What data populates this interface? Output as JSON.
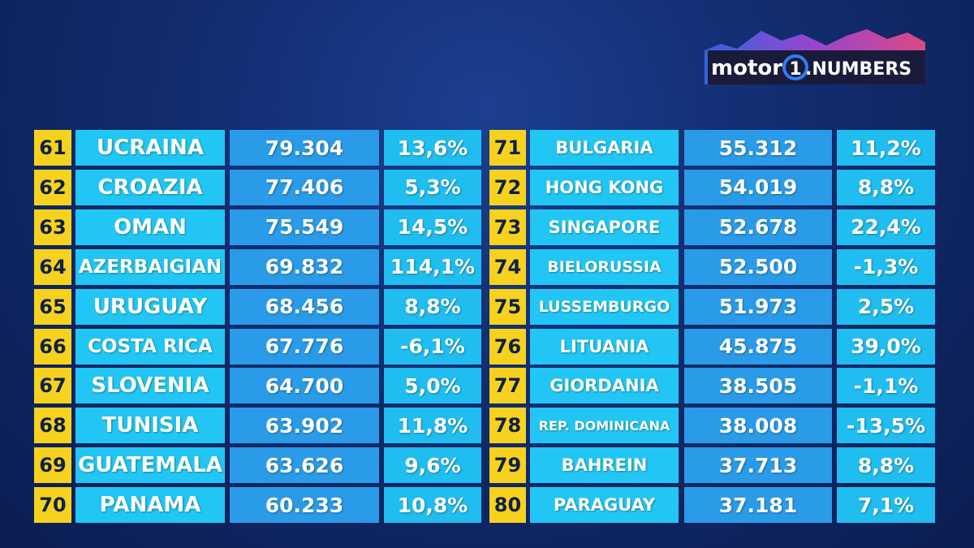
{
  "logo": {
    "brand": "motor",
    "mark": "1",
    "product": ".NUMBERS"
  },
  "tables": [
    {
      "rows": [
        [
          61,
          "UCRAINA",
          "79.304",
          "13,6%"
        ],
        [
          62,
          "CROAZIA",
          "77.406",
          "5,3%"
        ],
        [
          63,
          "OMAN",
          "75.549",
          "14,5%"
        ],
        [
          64,
          "AZERBAIGIAN",
          "69.832",
          "114,1%"
        ],
        [
          65,
          "URUGUAY",
          "68.456",
          "8,8%"
        ],
        [
          66,
          "COSTA RICA",
          "67.776",
          "-6,1%"
        ],
        [
          67,
          "SLOVENIA",
          "64.700",
          "5,0%"
        ],
        [
          68,
          "TUNISIA",
          "63.902",
          "11,8%"
        ],
        [
          69,
          "GUATEMALA",
          "63.626",
          "9,6%"
        ],
        [
          70,
          "PANAMA",
          "60.233",
          "10,8%"
        ]
      ]
    },
    {
      "rows": [
        [
          71,
          "BULGARIA",
          "55.312",
          "11,2%"
        ],
        [
          72,
          "HONG KONG",
          "54.019",
          "8,8%"
        ],
        [
          73,
          "SINGAPORE",
          "52.678",
          "22,4%"
        ],
        [
          74,
          "BIELORUSSIA",
          "52.500",
          "-1,3%"
        ],
        [
          75,
          "LUSSEMBURGO",
          "51.973",
          "2,5%"
        ],
        [
          76,
          "LITUANIA",
          "45.875",
          "39,0%"
        ],
        [
          77,
          "GIORDANIA",
          "38.505",
          "-1,1%"
        ],
        [
          78,
          "REP. DOMINICANA",
          "38.008",
          "-13,5%"
        ],
        [
          79,
          "BAHREIN",
          "37.713",
          "8,8%"
        ],
        [
          80,
          "PARAGUAY",
          "37.181",
          "7,1%"
        ]
      ]
    }
  ]
}
